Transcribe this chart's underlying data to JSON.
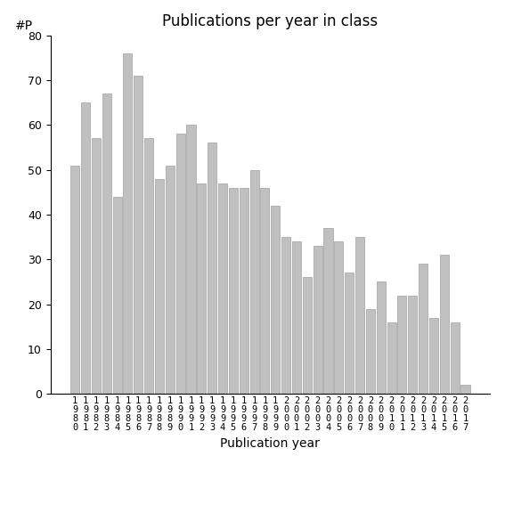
{
  "years": [
    "1980",
    "1981",
    "1982",
    "1983",
    "1984",
    "1985",
    "1986",
    "1987",
    "1988",
    "1989",
    "1990",
    "1991",
    "1992",
    "1993",
    "1994",
    "1995",
    "1996",
    "1997",
    "1998",
    "1999",
    "2000",
    "2001",
    "2002",
    "2003",
    "2004",
    "2005",
    "2006",
    "2007",
    "2008",
    "2009",
    "2010",
    "2011",
    "2012",
    "2013",
    "2014",
    "2015",
    "2016",
    "2017"
  ],
  "values": [
    51,
    65,
    57,
    67,
    44,
    76,
    71,
    57,
    48,
    51,
    58,
    60,
    47,
    56,
    47,
    46,
    46,
    50,
    46,
    42,
    35,
    34,
    26,
    33,
    37,
    34,
    27,
    35,
    19,
    25,
    16,
    22,
    22,
    29,
    17,
    31,
    16,
    2
  ],
  "bar_color": "#c0c0c0",
  "bar_edgecolor": "#a0a0a0",
  "title": "Publications per year in class",
  "xlabel": "Publication year",
  "ylabel": "#P",
  "ylim": [
    0,
    80
  ],
  "yticks": [
    0,
    10,
    20,
    30,
    40,
    50,
    60,
    70,
    80
  ],
  "background_color": "#ffffff",
  "title_fontsize": 12,
  "label_fontsize": 10,
  "tick_fontsize": 9
}
